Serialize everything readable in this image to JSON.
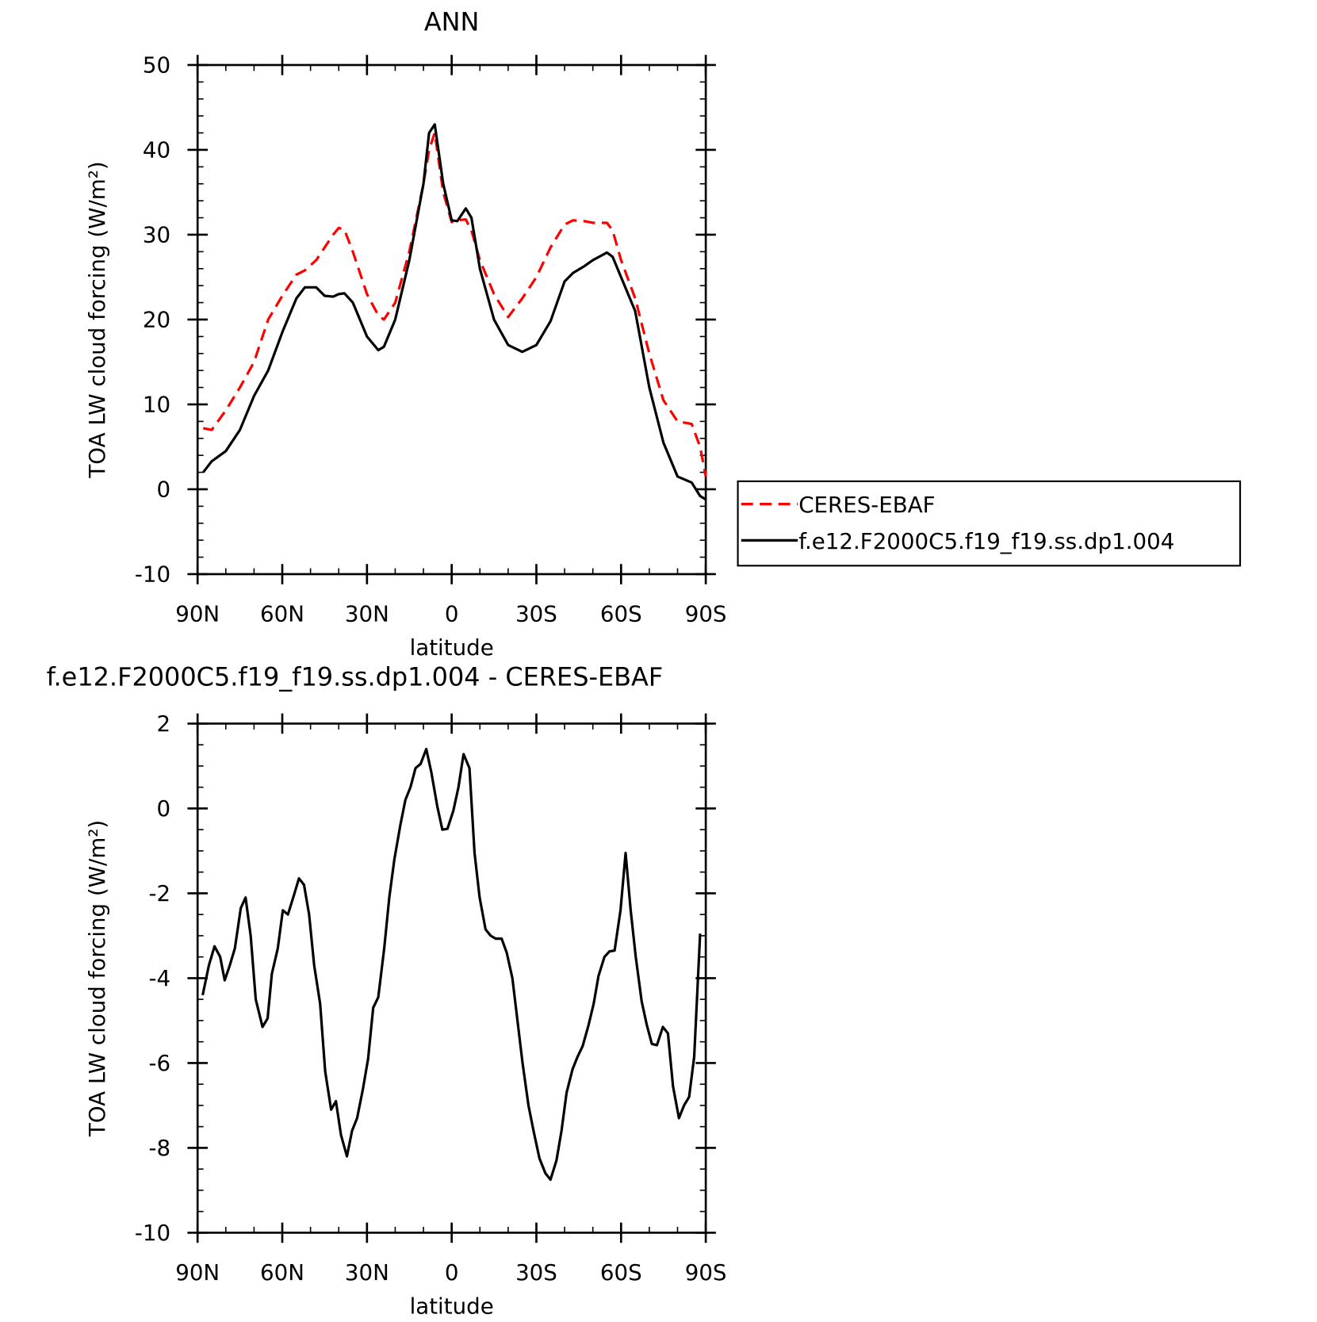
{
  "chart_data": [
    {
      "type": "line",
      "title": "ANN",
      "xlabel": "latitude",
      "ylabel": "TOA LW cloud forcing (W/m²)",
      "x": [
        88,
        85,
        80,
        75,
        70,
        65,
        60,
        55,
        52,
        48,
        45,
        42,
        40,
        38,
        35,
        30,
        26,
        24,
        20,
        15,
        10,
        8,
        6,
        3,
        0,
        -2,
        -5,
        -7,
        -10,
        -15,
        -20,
        -25,
        -30,
        -35,
        -40,
        -43,
        -47,
        -50,
        -55,
        -57,
        -60,
        -65,
        -70,
        -75,
        -80,
        -85,
        -88,
        -90
      ],
      "series": [
        {
          "name": "CERES-EBAF",
          "color": "#ff0000",
          "style": "dashed",
          "values": [
            7.2,
            7.0,
            9.3,
            12,
            15,
            20,
            22.8,
            25.3,
            25.8,
            27,
            28.5,
            30,
            30.8,
            30.6,
            28,
            23,
            20.5,
            20,
            22,
            28,
            36,
            40,
            42,
            35,
            31.5,
            31.7,
            31.8,
            30.5,
            27,
            23,
            20.3,
            22.5,
            25,
            28.5,
            31.2,
            31.7,
            31.6,
            31.4,
            31.4,
            30.5,
            27,
            22.5,
            16,
            10.5,
            8,
            7.7,
            5,
            1.5
          ]
        },
        {
          "name": "f.e12.F2000C5.f19_f19.ss.dp1.004",
          "color": "#000000",
          "style": "solid",
          "values": [
            2.0,
            3.3,
            4.5,
            7,
            11,
            14,
            18.5,
            22.5,
            23.8,
            23.8,
            22.8,
            22.7,
            23,
            23.1,
            22,
            18,
            16.4,
            16.8,
            20,
            27,
            36,
            42,
            43,
            36,
            31.7,
            31.6,
            33.1,
            32,
            26,
            20,
            17,
            16.2,
            17,
            19.8,
            24.5,
            25.5,
            26.3,
            27,
            27.9,
            27.4,
            25,
            21,
            12,
            5.5,
            1.5,
            0.8,
            -0.8,
            -1.2
          ]
        }
      ],
      "xlim": [
        90,
        -90
      ],
      "xticks": [
        {
          "value": 90,
          "label": "90N"
        },
        {
          "value": 60,
          "label": "60N"
        },
        {
          "value": 30,
          "label": "30N"
        },
        0,
        {
          "value": -30,
          "label": "30S"
        },
        {
          "value": -60,
          "label": "60S"
        },
        {
          "value": -90,
          "label": "90S"
        }
      ],
      "ylim": [
        -10,
        50
      ],
      "yticks": [
        -10,
        0,
        10,
        20,
        30,
        40,
        50
      ],
      "legend": "right"
    },
    {
      "type": "line",
      "title": "f.e12.F2000C5.f19_f19.ss.dp1.004 - CERES-EBAF",
      "xlabel": "latitude",
      "ylabel": "TOA LW cloud forcing (W/m²)",
      "x": [
        88.2,
        86,
        84,
        82,
        80.4,
        78.6,
        76.8,
        74.7,
        73,
        71.2,
        69.4,
        67,
        65.2,
        63.7,
        61.6,
        59.8,
        58,
        55.9,
        54.1,
        52.3,
        50.5,
        48.7,
        46.6,
        44.8,
        42.7,
        41,
        39.2,
        37.1,
        35.3,
        33.5,
        31.4,
        29.6,
        27.8,
        26,
        23.9,
        22.1,
        20.3,
        18.2,
        16.4,
        14.6,
        12.8,
        11,
        9,
        7.2,
        5.1,
        3.3,
        1.5,
        -0.6,
        -2.4,
        -4.2,
        -6.3,
        -8.1,
        -9.9,
        -12,
        -13.8,
        -15.6,
        -17.7,
        -19.5,
        -21.5,
        -23.3,
        -25.1,
        -27.2,
        -29,
        -31.1,
        -33.2,
        -35,
        -37.1,
        -38.9,
        -40.7,
        -42.8,
        -44.6,
        -46.4,
        -48.5,
        -50.3,
        -52,
        -54.1,
        -55.9,
        -57.7,
        -59.8,
        -61.6,
        -63.4,
        -65.2,
        -67.3,
        -69.1,
        -70.9,
        -72.7,
        -74.8,
        -76.6,
        -78.4,
        -80.5,
        -82.3,
        -84.1,
        -85.9,
        -88
      ],
      "series": [
        {
          "color": "#000000",
          "style": "solid",
          "values": [
            -4.4,
            -3.7,
            -3.25,
            -3.5,
            -4.05,
            -3.7,
            -3.3,
            -2.35,
            -2.1,
            -3,
            -4.5,
            -5.15,
            -4.95,
            -3.9,
            -3.3,
            -2.4,
            -2.5,
            -2.05,
            -1.65,
            -1.8,
            -2.5,
            -3.7,
            -4.6,
            -6.2,
            -7.1,
            -6.9,
            -7.7,
            -8.2,
            -7.6,
            -7.3,
            -6.6,
            -5.9,
            -4.7,
            -4.45,
            -3.3,
            -2.1,
            -1.2,
            -0.4,
            0.2,
            0.5,
            0.95,
            1.05,
            1.4,
            0.85,
            0.05,
            -0.5,
            -0.48,
            -0.05,
            0.5,
            1.28,
            0.95,
            -1.05,
            -2.1,
            -2.85,
            -3,
            -3.07,
            -3.07,
            -3.4,
            -4,
            -5,
            -6,
            -7,
            -7.6,
            -8.25,
            -8.6,
            -8.75,
            -8.3,
            -7.6,
            -6.7,
            -6.15,
            -5.85,
            -5.6,
            -5.1,
            -4.6,
            -3.95,
            -3.5,
            -3.37,
            -3.35,
            -2.4,
            -1.05,
            -2.4,
            -3.5,
            -4.55,
            -5.1,
            -5.55,
            -5.58,
            -5.15,
            -5.3,
            -6.55,
            -7.3,
            -7,
            -6.8,
            -5.85,
            -2.95
          ]
        }
      ],
      "xlim": [
        90,
        -90
      ],
      "xticks": [
        {
          "value": 90,
          "label": "90N"
        },
        {
          "value": 60,
          "label": "60N"
        },
        {
          "value": 30,
          "label": "30N"
        },
        0,
        {
          "value": -30,
          "label": "30S"
        },
        {
          "value": -60,
          "label": "60S"
        },
        {
          "value": -90,
          "label": "90S"
        }
      ],
      "ylim": [
        -10,
        2
      ],
      "yticks": [
        -10,
        -8,
        -6,
        -4,
        -2,
        0,
        2
      ]
    }
  ]
}
